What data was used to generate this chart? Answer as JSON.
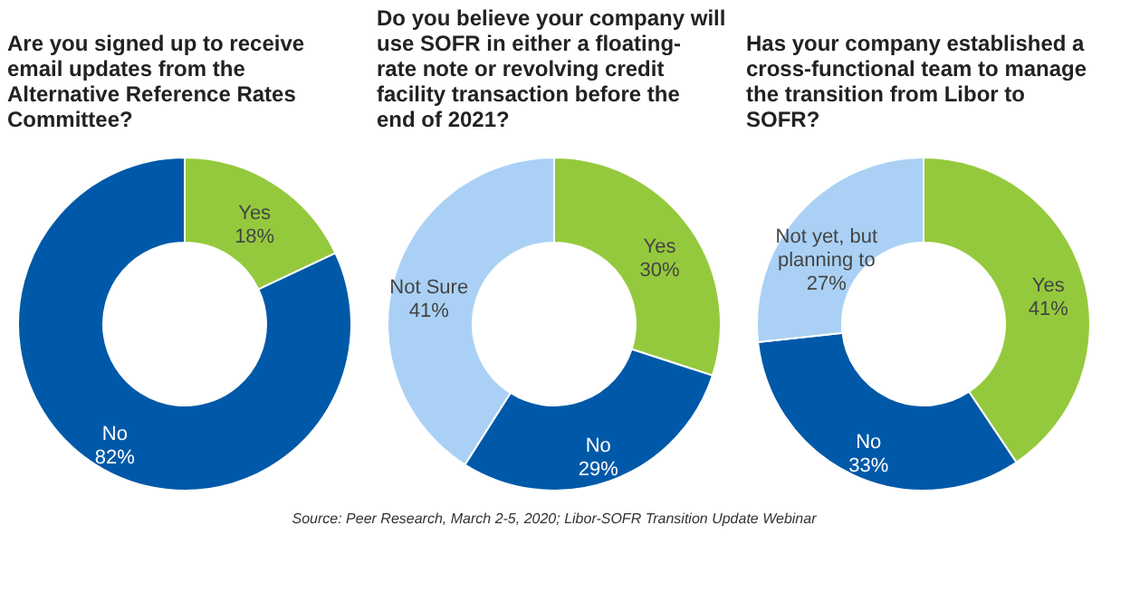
{
  "chart_data": [
    {
      "type": "donut",
      "title": "Are you signed up to receive email updates from the Alternative Reference Rates Committee?",
      "categories": [
        "Yes",
        "No"
      ],
      "values": [
        18,
        82
      ],
      "value_labels": [
        "18%",
        "82%"
      ],
      "colors": [
        "#95c93d",
        "#0059a8"
      ],
      "legend": false,
      "annotations": [
        "Source: Peer Research, March 2-5, 2020; Libor-SOFR Transition Update Webinar"
      ]
    },
    {
      "type": "donut",
      "title": "Do you believe your company will use SOFR in either a floating-rate note or revolving credit facility transaction before the end of 2021?",
      "categories": [
        "Yes",
        "No",
        "Not Sure"
      ],
      "values": [
        30,
        29,
        41
      ],
      "value_labels": [
        "30%",
        "29%",
        "41%"
      ],
      "colors": [
        "#95c93d",
        "#0059a8",
        "#aad1f5"
      ],
      "legend": false
    },
    {
      "type": "donut",
      "title": "Has your company established a cross-functional team to manage the transition from Libor to SOFR?",
      "categories": [
        "Yes",
        "No",
        "Not yet, but planning to"
      ],
      "values": [
        41,
        33,
        27
      ],
      "value_labels": [
        "41%",
        "33%",
        "27%"
      ],
      "colors": [
        "#95c93d",
        "#0059a8",
        "#aad1f5"
      ],
      "legend": false
    }
  ]
}
